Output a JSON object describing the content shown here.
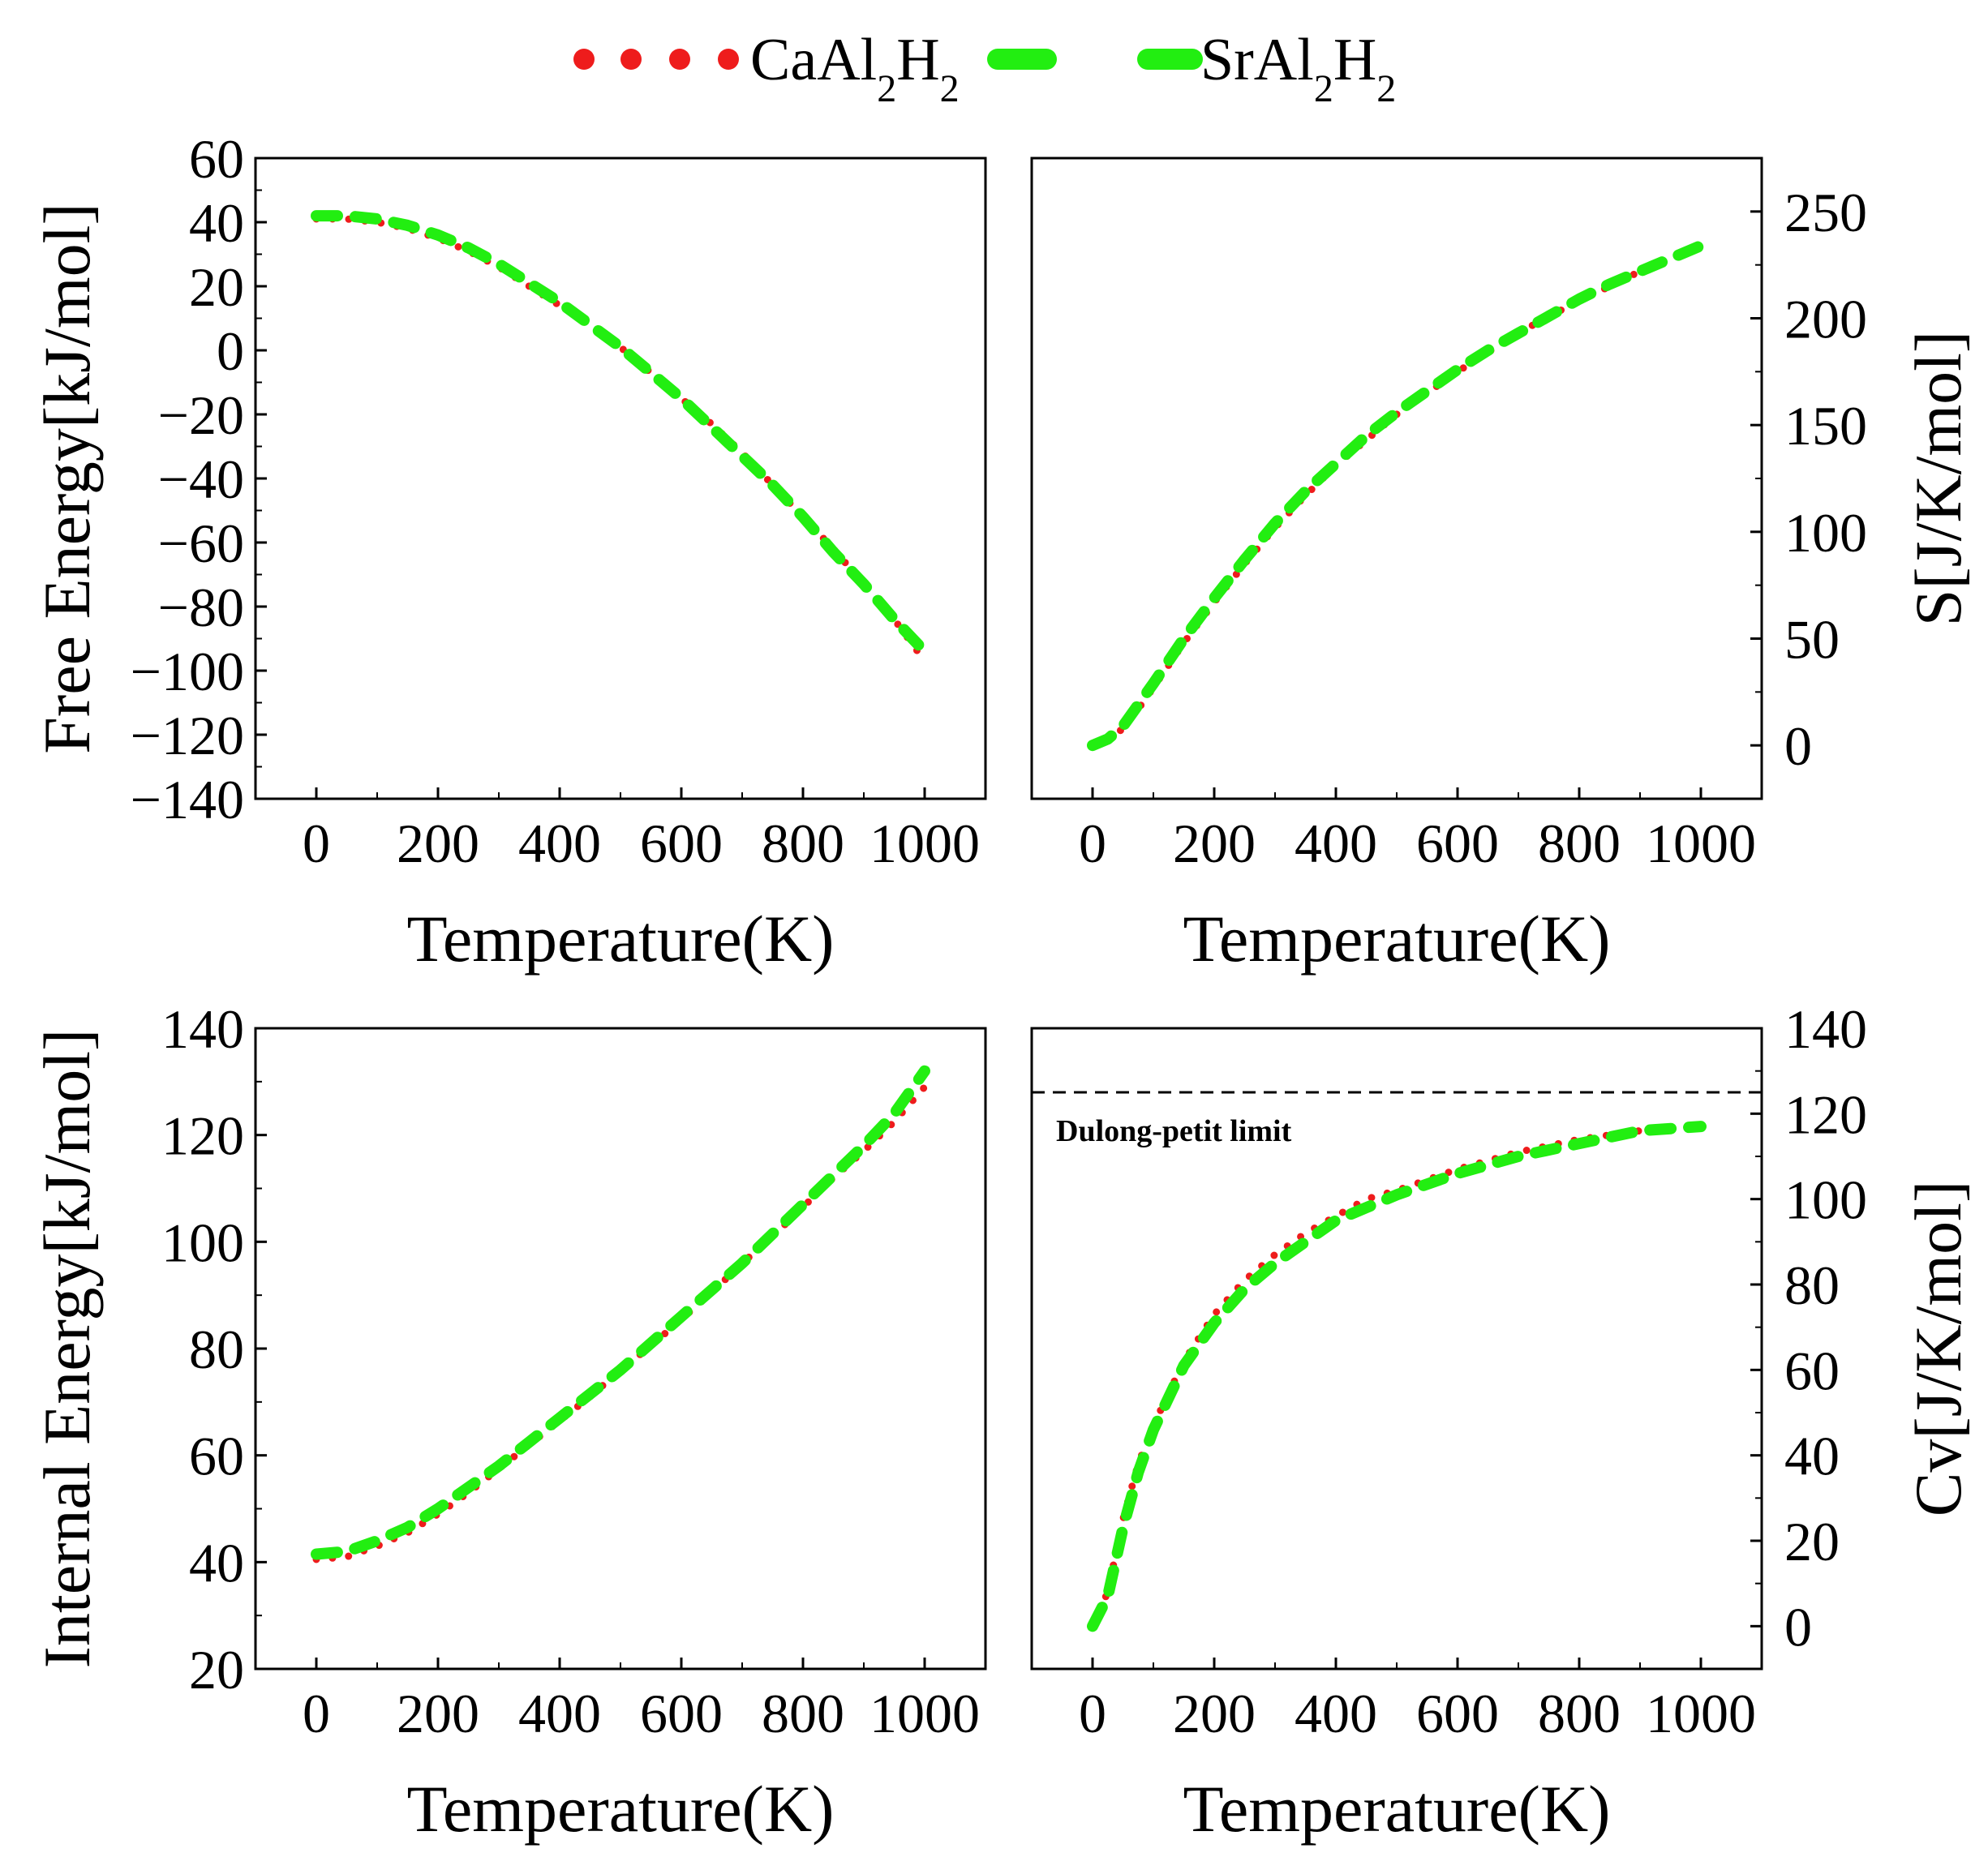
{
  "colors": {
    "ca": "#ee1c1c",
    "sr": "#22ee11",
    "axis": "#000000",
    "limit": "#000000"
  },
  "legend": {
    "items": [
      {
        "key": "ca",
        "base": "CaAl",
        "sub1": "2",
        "mid": "H",
        "sub2": "2"
      },
      {
        "key": "sr",
        "base": "SrAl",
        "sub1": "2",
        "mid": "H",
        "sub2": "2"
      }
    ]
  },
  "chart_data": [
    {
      "type": "line",
      "id": "free-energy",
      "xlabel": "Temperature(K)",
      "ylabel": "Free Energy[kJ/mol]",
      "xlim": [
        -100,
        1100
      ],
      "ylim": [
        -140,
        60
      ],
      "xticks": [
        0,
        200,
        400,
        600,
        800,
        1000
      ],
      "yticks": [
        -140,
        -120,
        -100,
        -80,
        -60,
        -40,
        -20,
        0,
        20,
        40,
        60
      ],
      "yaxis_side": "left",
      "x": [
        0,
        50,
        100,
        150,
        200,
        250,
        300,
        350,
        400,
        450,
        500,
        550,
        600,
        650,
        700,
        750,
        800,
        850,
        900,
        950,
        1000
      ],
      "series": [
        {
          "name": "CaAl2H2",
          "key": "ca",
          "values": [
            41,
            41,
            40,
            38,
            35,
            31,
            26,
            20,
            14,
            8,
            1,
            -7,
            -15,
            -23,
            -32,
            -42,
            -52,
            -62,
            -73,
            -84,
            -97
          ]
        },
        {
          "name": "SrAl2H2",
          "key": "sr",
          "values": [
            42,
            42,
            41,
            39,
            36,
            32,
            27,
            21,
            15,
            8,
            1,
            -7,
            -15,
            -24,
            -33,
            -42,
            -52,
            -63,
            -73,
            -84,
            -94
          ]
        }
      ]
    },
    {
      "type": "line",
      "id": "entropy",
      "xlabel": "Temperature(K)",
      "ylabel": "S[J/K/mol]",
      "xlim": [
        -100,
        1100
      ],
      "ylim": [
        -25,
        275
      ],
      "xticks": [
        0,
        200,
        400,
        600,
        800,
        1000
      ],
      "yticks": [
        0,
        50,
        100,
        150,
        200,
        250
      ],
      "yaxis_side": "right",
      "x": [
        0,
        25,
        50,
        75,
        100,
        150,
        200,
        250,
        300,
        350,
        400,
        450,
        500,
        550,
        600,
        650,
        700,
        750,
        800,
        850,
        900,
        950,
        1000
      ],
      "series": [
        {
          "name": "CaAl2H2",
          "key": "ca",
          "values": [
            0,
            2,
            8,
            17,
            27,
            48,
            67,
            85,
            102,
            117,
            131,
            143,
            155,
            165,
            175,
            184,
            193,
            201,
            208,
            215,
            222,
            228,
            234
          ]
        },
        {
          "name": "SrAl2H2",
          "key": "sr",
          "values": [
            0,
            3,
            9,
            19,
            29,
            50,
            69,
            87,
            104,
            119,
            132,
            145,
            156,
            166,
            176,
            185,
            193,
            201,
            209,
            216,
            222,
            228,
            234
          ]
        }
      ]
    },
    {
      "type": "line",
      "id": "internal-energy",
      "xlabel": "Temperature(K)",
      "ylabel": "Internal Energy[kJ/mol]",
      "xlim": [
        -100,
        1100
      ],
      "ylim": [
        20,
        140
      ],
      "xticks": [
        0,
        200,
        400,
        600,
        800,
        1000
      ],
      "yticks": [
        20,
        40,
        60,
        80,
        100,
        120,
        140
      ],
      "yaxis_side": "left",
      "x": [
        0,
        50,
        100,
        150,
        200,
        250,
        300,
        350,
        400,
        450,
        500,
        550,
        600,
        650,
        700,
        750,
        800,
        850,
        900,
        950,
        1000
      ],
      "series": [
        {
          "name": "CaAl2H2",
          "key": "ca",
          "values": [
            40.5,
            41,
            43,
            45.5,
            49,
            53,
            57.5,
            62,
            66.5,
            71,
            76,
            80.5,
            85.5,
            90.5,
            96,
            101,
            106.5,
            112,
            117,
            122.5,
            129
          ]
        },
        {
          "name": "SrAl2H2",
          "key": "sr",
          "values": [
            41.5,
            42,
            44,
            46.5,
            50,
            54,
            58,
            62.5,
            67,
            71.5,
            76,
            81,
            86,
            91,
            96,
            101.5,
            107,
            112.5,
            118,
            124,
            132
          ]
        }
      ]
    },
    {
      "type": "line",
      "id": "heat-capacity",
      "xlabel": "Temperature(K)",
      "ylabel": "Cv[J/K/mol]",
      "xlim": [
        -100,
        1100
      ],
      "ylim": [
        -10,
        140
      ],
      "xticks": [
        0,
        200,
        400,
        600,
        800,
        1000
      ],
      "yticks": [
        0,
        20,
        40,
        60,
        80,
        100,
        120,
        140
      ],
      "yaxis_side": "right",
      "x": [
        0,
        25,
        50,
        75,
        100,
        150,
        200,
        250,
        300,
        350,
        400,
        450,
        500,
        600,
        700,
        800,
        900,
        1000
      ],
      "series": [
        {
          "name": "CaAl2H2",
          "key": "ca",
          "values": [
            0,
            8,
            25,
            38,
            47,
            62,
            73,
            81,
            87,
            92,
            96,
            100,
            102,
            107,
            111,
            114,
            116,
            117
          ]
        },
        {
          "name": "SrAl2H2",
          "key": "sr",
          "values": [
            0,
            7,
            23,
            36,
            46,
            61,
            71,
            79,
            85,
            90,
            95,
            98,
            101,
            106,
            110,
            113,
            116,
            117
          ]
        }
      ],
      "reference_line": {
        "y": 125,
        "label": "Dulong-petit limit"
      }
    }
  ]
}
